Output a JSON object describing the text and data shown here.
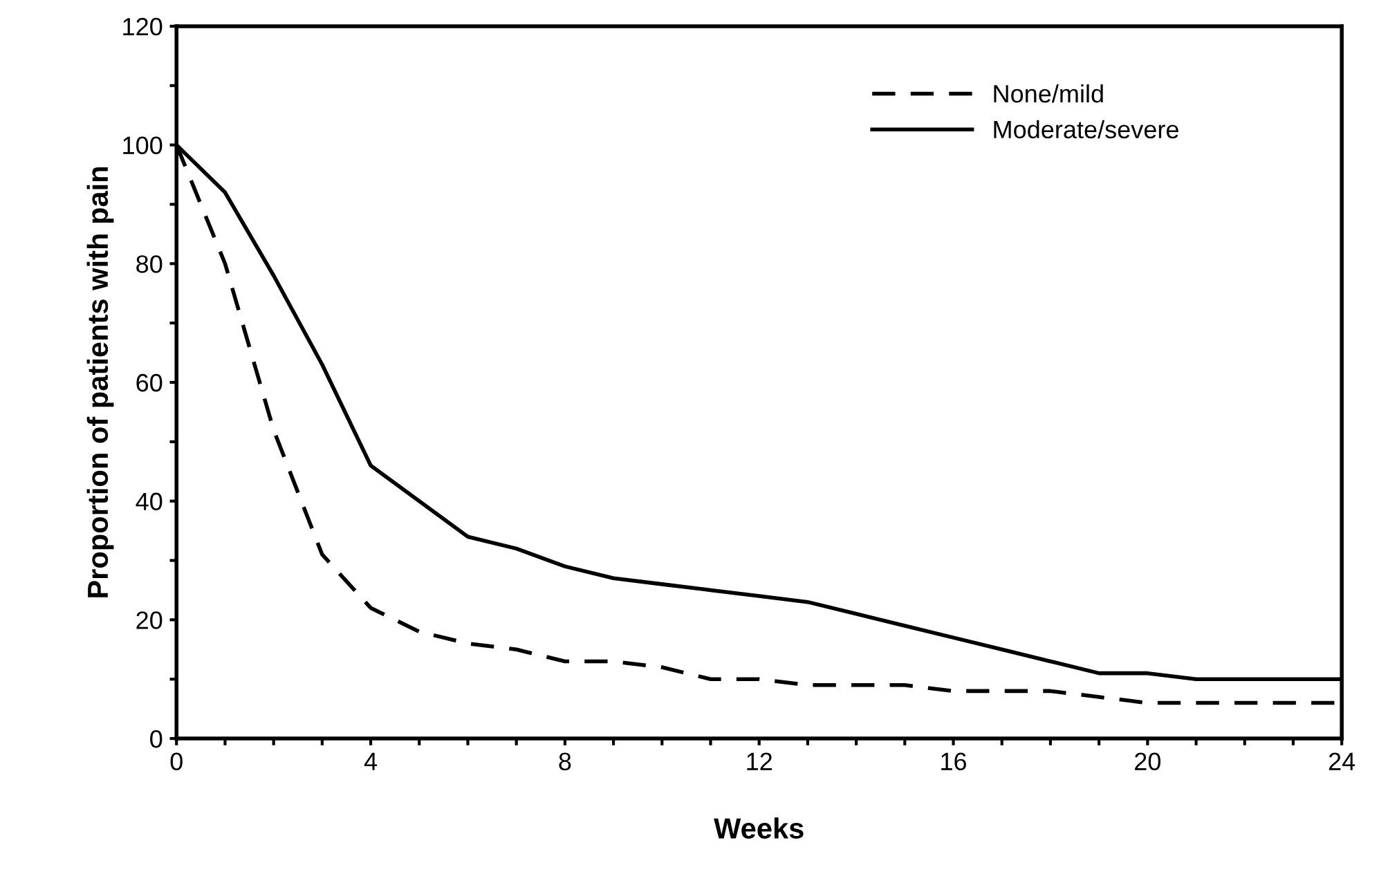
{
  "chart_data": {
    "type": "line",
    "xlabel": "Weeks",
    "ylabel": "Proportion of patients with pain",
    "x": [
      0,
      1,
      2,
      3,
      4,
      5,
      6,
      7,
      8,
      9,
      10,
      11,
      12,
      13,
      14,
      15,
      16,
      17,
      18,
      19,
      20,
      21,
      22,
      23,
      24
    ],
    "series": [
      {
        "name": "None/mild",
        "color": "#000000",
        "line_style": "dashed",
        "values": [
          100,
          80,
          52,
          31,
          22,
          18,
          16,
          15,
          13,
          13,
          12,
          10,
          10,
          9,
          9,
          9,
          8,
          8,
          8,
          7,
          6,
          6,
          6,
          6,
          6
        ]
      },
      {
        "name": "Moderate/severe",
        "color": "#000000",
        "line_style": "solid",
        "values": [
          100,
          92,
          78,
          63,
          46,
          40,
          34,
          32,
          29,
          27,
          26,
          25,
          24,
          23,
          21,
          19,
          17,
          15,
          13,
          11,
          11,
          10,
          10,
          10,
          10
        ]
      }
    ],
    "xlim": [
      0,
      24
    ],
    "xticks": [
      0,
      {
        "value": 1,
        "label": null
      },
      {
        "value": 2,
        "label": null
      },
      {
        "value": 3,
        "label": null
      },
      4,
      {
        "value": 5,
        "label": null
      },
      {
        "value": 6,
        "label": null
      },
      {
        "value": 7,
        "label": null
      },
      8,
      {
        "value": 9,
        "label": null
      },
      {
        "value": 10,
        "label": null
      },
      {
        "value": 11,
        "label": null
      },
      12,
      {
        "value": 13,
        "label": null
      },
      {
        "value": 14,
        "label": null
      },
      {
        "value": 15,
        "label": null
      },
      16,
      {
        "value": 17,
        "label": null
      },
      {
        "value": 18,
        "label": null
      },
      {
        "value": 19,
        "label": null
      },
      20,
      {
        "value": 21,
        "label": null
      },
      {
        "value": 22,
        "label": null
      },
      {
        "value": 23,
        "label": null
      },
      24
    ],
    "ylim": [
      0,
      120
    ],
    "yticks": [
      0,
      {
        "value": 10,
        "label": null
      },
      20,
      {
        "value": 30,
        "label": null
      },
      40,
      {
        "value": 50,
        "label": null
      },
      60,
      {
        "value": 70,
        "label": null
      },
      80,
      {
        "value": 90,
        "label": null
      },
      100,
      {
        "value": 110,
        "label": null
      },
      120
    ],
    "grid": false,
    "legend": "top right",
    "marker": "none"
  }
}
